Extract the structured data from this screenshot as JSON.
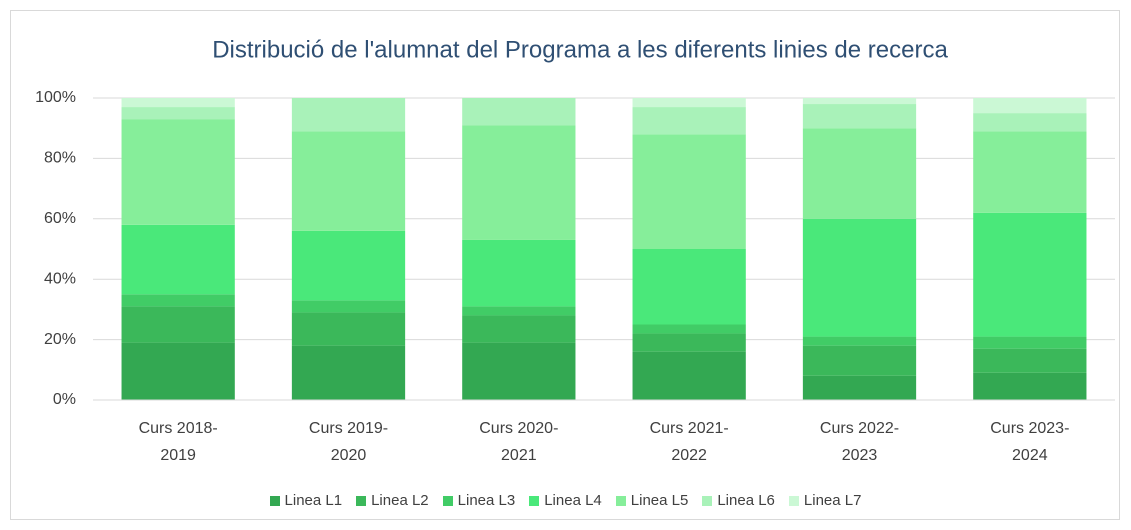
{
  "chart_data": {
    "type": "stacked_bar",
    "title": "Distribució de l'alumnat del Programa a les diferents linies de recerca",
    "categories": [
      "Curs 2018-2019",
      "Curs 2019-2020",
      "Curs 2020-2021",
      "Curs 2021-2022",
      "Curs 2022-2023",
      "Curs 2023-2024"
    ],
    "series": [
      {
        "name": "Linea L1",
        "color": "#33a852",
        "values": [
          19,
          18,
          19,
          16,
          8,
          9
        ]
      },
      {
        "name": "Linea L2",
        "color": "#3bb85a",
        "values": [
          12,
          11,
          9,
          6,
          10,
          8
        ]
      },
      {
        "name": "Linea L3",
        "color": "#41cc66",
        "values": [
          4,
          4,
          3,
          3,
          3,
          4
        ]
      },
      {
        "name": "Linea L4",
        "color": "#4ae87a",
        "values": [
          23,
          23,
          22,
          25,
          39,
          41
        ]
      },
      {
        "name": "Linea L5",
        "color": "#86ee9a",
        "values": [
          35,
          33,
          38,
          38,
          30,
          27
        ]
      },
      {
        "name": "Linea L6",
        "color": "#a9f2b9",
        "values": [
          4,
          11,
          9,
          9,
          8,
          6
        ]
      },
      {
        "name": "Linea L7",
        "color": "#cbf8d5",
        "values": [
          3,
          0,
          0,
          3,
          2,
          5
        ]
      }
    ],
    "ylim": [
      0,
      100
    ],
    "yticks": [
      {
        "value": 0,
        "label": "0%"
      },
      {
        "value": 20,
        "label": "20%"
      },
      {
        "value": 40,
        "label": "40%"
      },
      {
        "value": 60,
        "label": "60%"
      },
      {
        "value": 80,
        "label": "80%"
      },
      {
        "value": 100,
        "label": "100%"
      }
    ],
    "grid": true
  }
}
